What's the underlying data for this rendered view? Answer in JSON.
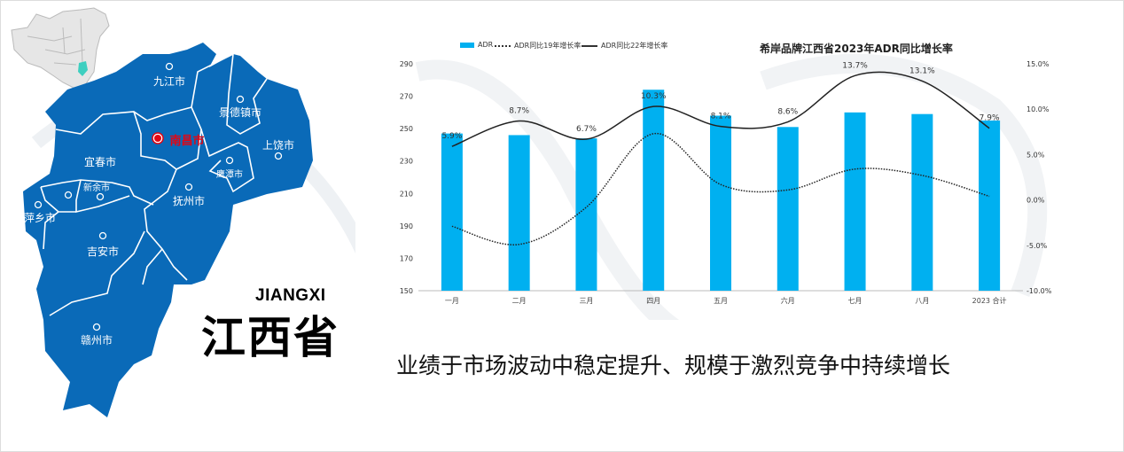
{
  "map": {
    "title_en": "JIANGXI",
    "title_cn": "江西省",
    "cities": [
      {
        "name": "九江市"
      },
      {
        "name": "景德镇市"
      },
      {
        "name": "南昌市"
      },
      {
        "name": "上饶市"
      },
      {
        "name": "鹰潭市"
      },
      {
        "name": "宜春市"
      },
      {
        "name": "新余市"
      },
      {
        "name": "萍乡市"
      },
      {
        "name": "抚州市"
      },
      {
        "name": "吉安市"
      },
      {
        "name": "赣州市"
      }
    ],
    "colors": {
      "province": "#0a6ab8",
      "capital": "#e30613",
      "highlight": "#3ecfc0"
    }
  },
  "slogan": "业绩于市场波动中稳定提升、规模于激烈竞争中持续增长",
  "chart_data": {
    "type": "bar",
    "title": "希岸品牌江西省2023年ADR同比增长率",
    "categories": [
      "一月",
      "二月",
      "三月",
      "四月",
      "五月",
      "六月",
      "七月",
      "八月",
      "2023 合计"
    ],
    "legend": [
      "ADR",
      "ADR同比19年增长率",
      "ADR同比22年增长率"
    ],
    "series": [
      {
        "name": "ADR",
        "type": "bar",
        "axis": "left",
        "color": "#00b0f0",
        "values": [
          247,
          246,
          244,
          274,
          258,
          251,
          260,
          259,
          255
        ]
      },
      {
        "name": "ADR同比19年增长率",
        "type": "line",
        "style": "dotted",
        "axis": "right",
        "values": [
          -2.9,
          -4.9,
          -0.8,
          7.3,
          1.7,
          1.1,
          3.4,
          2.7,
          0.4
        ]
      },
      {
        "name": "ADR同比22年增长率",
        "type": "line",
        "style": "solid",
        "axis": "right",
        "values": [
          5.9,
          8.7,
          6.7,
          10.3,
          8.1,
          8.6,
          13.7,
          13.1,
          7.9
        ],
        "labels": [
          "5.9%",
          "8.7%",
          "6.7%",
          "10.3%",
          "8.1%",
          "8.6%",
          "13.7%",
          "13.1%",
          "7.9%"
        ]
      }
    ],
    "left_axis": {
      "ylim": [
        150,
        290
      ],
      "ticks": [
        "150",
        "170",
        "190",
        "210",
        "230",
        "250",
        "270",
        "290"
      ]
    },
    "right_axis": {
      "ylim": [
        -10,
        15
      ],
      "ticks": [
        "-10.0%",
        "-5.0%",
        "0.0%",
        "5.0%",
        "10.0%",
        "15.0%"
      ]
    },
    "legend_position": "top-left"
  }
}
